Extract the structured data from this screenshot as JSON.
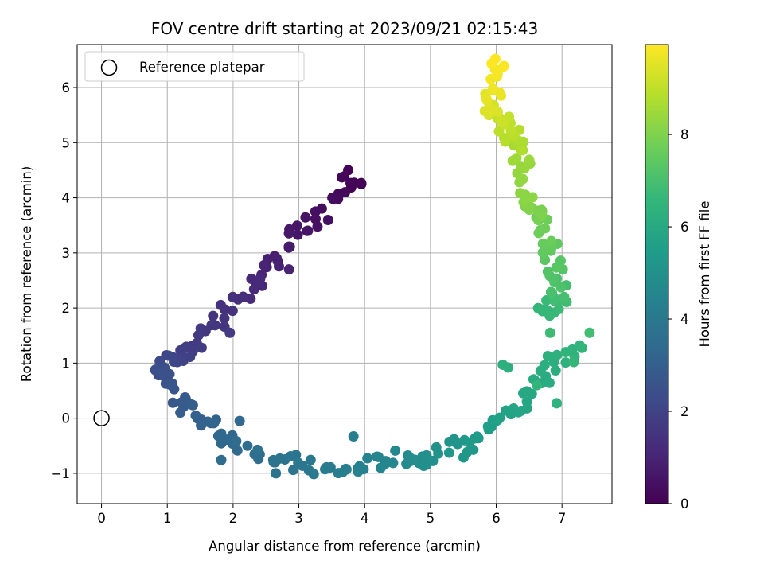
{
  "chart_data": {
    "type": "scatter",
    "title": "FOV centre drift starting at 2023/09/21 02:15:43",
    "xlabel": "Angular distance from reference (arcmin)",
    "ylabel": "Rotation from reference (arcmin)",
    "xlim": [
      -0.37,
      7.76
    ],
    "ylim": [
      -1.55,
      6.78
    ],
    "xticks": [
      "0",
      "1",
      "2",
      "3",
      "4",
      "5",
      "6",
      "7"
    ],
    "yticks": [
      "−1",
      "0",
      "1",
      "2",
      "3",
      "4",
      "5",
      "6"
    ],
    "grid": true,
    "legend": {
      "placement": "top-left",
      "entries": [
        "Reference platepar"
      ]
    },
    "colorbar": {
      "label": "Hours from first FF file",
      "range": [
        0,
        9.95
      ],
      "ticks": [
        "0",
        "2",
        "4",
        "6",
        "8"
      ],
      "colormap": [
        "#440154",
        "#482878",
        "#3e4989",
        "#31688e",
        "#26828e",
        "#1f9e89",
        "#35b779",
        "#6ece58",
        "#b5de2b",
        "#fde725"
      ]
    },
    "reference_point": {
      "x": 0,
      "y": 0
    },
    "point_colors": {
      "reference_marker": "#000000"
    },
    "segments": [
      {
        "t0": 0.0,
        "t1": 1.2,
        "x": [
          3.95,
          3.72,
          3.45,
          3.25,
          3.05,
          2.8,
          2.6,
          2.4,
          2.25
        ],
        "y": [
          4.25,
          4.3,
          3.95,
          3.55,
          3.4,
          3.1,
          2.85,
          2.55,
          2.3
        ]
      },
      {
        "t0": 1.2,
        "t1": 2.5,
        "x": [
          2.25,
          2.0,
          1.78,
          1.55,
          1.35,
          1.2,
          1.05,
          0.95,
          0.92
        ],
        "y": [
          2.3,
          2.0,
          1.75,
          1.5,
          1.3,
          1.15,
          1.0,
          0.85,
          0.75
        ]
      },
      {
        "t0": 2.5,
        "t1": 3.3,
        "x": [
          0.92,
          1.0,
          1.15,
          1.3,
          1.5,
          1.7,
          1.82
        ],
        "y": [
          0.75,
          0.5,
          0.35,
          0.15,
          0.05,
          -0.1,
          -0.3
        ]
      },
      {
        "t0": 3.3,
        "t1": 4.9,
        "x": [
          1.82,
          2.2,
          2.6,
          3.0,
          3.4,
          3.8,
          4.2,
          4.6,
          4.9
        ],
        "y": [
          -0.3,
          -0.5,
          -0.7,
          -0.85,
          -0.95,
          -0.95,
          -0.8,
          -0.7,
          -0.75
        ]
      },
      {
        "t0": 4.9,
        "t1": 6.5,
        "x": [
          4.9,
          5.2,
          5.5,
          5.8,
          6.1,
          6.3,
          6.55,
          6.8,
          6.95,
          7.2
        ],
        "y": [
          -0.75,
          -0.5,
          -0.6,
          -0.3,
          0.0,
          0.1,
          0.5,
          0.85,
          1.1,
          1.3
        ]
      },
      {
        "t0": 6.5,
        "t1": 8.2,
        "x": [
          6.7,
          6.9,
          7.0,
          6.95,
          6.85,
          6.75,
          6.65,
          6.55,
          6.5
        ],
        "y": [
          1.9,
          2.0,
          2.3,
          2.5,
          2.9,
          3.2,
          3.6,
          3.8,
          4.1
        ]
      },
      {
        "t0": 8.2,
        "t1": 9.95,
        "x": [
          6.5,
          6.4,
          6.35,
          6.25,
          6.15,
          6.05,
          5.95,
          5.9,
          6.0,
          6.05
        ],
        "y": [
          4.1,
          4.6,
          4.9,
          5.0,
          5.3,
          5.5,
          5.6,
          5.8,
          6.2,
          6.4
        ]
      }
    ],
    "outliers": [
      {
        "x": 7.42,
        "y": 1.55,
        "t": 6.9
      },
      {
        "x": 6.62,
        "y": 0.6,
        "t": 6.5
      },
      {
        "x": 6.92,
        "y": 0.27,
        "t": 6.4
      },
      {
        "x": 6.1,
        "y": 0.97,
        "t": 6.3
      },
      {
        "x": 6.18,
        "y": 0.92,
        "t": 6.3
      },
      {
        "x": 6.82,
        "y": 1.55,
        "t": 6.8
      },
      {
        "x": 7.18,
        "y": 1.02,
        "t": 6.6
      },
      {
        "x": 3.83,
        "y": -0.33,
        "t": 4.2
      },
      {
        "x": 2.1,
        "y": -0.05,
        "t": 3.4
      },
      {
        "x": 1.82,
        "y": -0.76,
        "t": 3.5
      },
      {
        "x": 2.65,
        "y": -1.0,
        "t": 3.8
      },
      {
        "x": 3.95,
        "y": 4.25,
        "t": 0.05
      },
      {
        "x": 3.75,
        "y": 4.5,
        "t": 0.05
      },
      {
        "x": 2.85,
        "y": 2.7,
        "t": 1.0
      },
      {
        "x": 1.95,
        "y": 1.55,
        "t": 1.7
      }
    ]
  }
}
